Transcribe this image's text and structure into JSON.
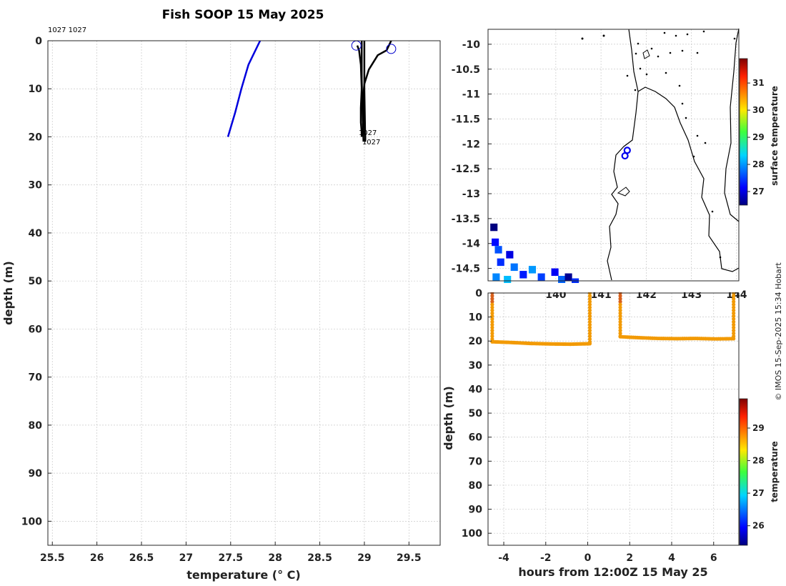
{
  "page": {
    "title": "Fish SOOP 15 May 2025",
    "credit": "© IMOS 15-Sep-2025 15:34 Hobart",
    "top_left_label": "1027 1027"
  },
  "colors": {
    "profile_blue": "#0000dd",
    "profile_black": "#000000",
    "series_orange": "#f29a05",
    "land_line": "#000000"
  },
  "chart_data": [
    {
      "type": "line",
      "name": "profile",
      "xlabel": "temperature (° C)",
      "ylabel": "depth (m)",
      "xlim": [
        25.45,
        29.85
      ],
      "ylim": [
        105,
        0
      ],
      "xticks": [
        25.5,
        26,
        26.5,
        27,
        27.5,
        28,
        28.5,
        29,
        29.5
      ],
      "xtick_labels": [
        "25.5",
        "26",
        "26.5",
        "27",
        "27.5",
        "28",
        "28.5",
        "29",
        "29.5"
      ],
      "yticks": [
        0,
        10,
        20,
        30,
        40,
        50,
        60,
        70,
        80,
        90,
        100
      ],
      "ytick_labels": [
        "0",
        "10",
        "20",
        "30",
        "40",
        "50",
        "60",
        "70",
        "80",
        "90",
        "100"
      ],
      "grid": true,
      "series": [
        {
          "name": "blue profile",
          "color": "#0000dd",
          "x": [
            27.47,
            27.55,
            27.62,
            27.7,
            27.83
          ],
          "y": [
            20,
            15,
            10,
            5,
            0
          ]
        },
        {
          "name": "profile 1027 a",
          "color": "#000000",
          "x": [
            28.92,
            28.94,
            28.96,
            28.97,
            28.96,
            28.96,
            28.97,
            28.97
          ],
          "y": [
            1,
            2,
            5,
            10,
            14,
            17,
            19,
            20
          ]
        },
        {
          "name": "profile 1027 b",
          "color": "#000000",
          "x": [
            29.3,
            29.25,
            29.15,
            29.05,
            29.0,
            28.99,
            28.99,
            29.0,
            29.01,
            29.01
          ],
          "y": [
            0,
            2,
            3,
            6,
            9,
            11,
            14,
            17,
            20,
            21
          ]
        },
        {
          "name": "profile 1027 c",
          "color": "#000000",
          "x": [
            28.97,
            28.97,
            28.98,
            28.99
          ],
          "y": [
            0,
            8,
            15,
            21
          ]
        },
        {
          "name": "profile 1027 d",
          "color": "#000000",
          "x": [
            29.0,
            29.0,
            29.01
          ],
          "y": [
            0,
            10,
            21
          ]
        }
      ],
      "markers": [
        {
          "name": "surface marker 1",
          "x": 28.91,
          "y": 1
        },
        {
          "name": "surface marker 2",
          "x": 29.3,
          "y": 1.7
        }
      ],
      "annotations": [
        {
          "text": "1027",
          "x": 28.96,
          "y": 19
        },
        {
          "text": "1027",
          "x": 29.0,
          "y": 21
        }
      ]
    },
    {
      "type": "heatmap",
      "name": "map",
      "colorbar_label": "surface temperature",
      "colorbar_range": [
        26.5,
        31.9
      ],
      "colorbar_ticks": [
        27,
        28,
        29,
        30,
        31
      ],
      "xlim": [
        138.5,
        144.05
      ],
      "ylim": [
        -14.75,
        -9.7
      ],
      "xticks": [
        140,
        141,
        142,
        143,
        144
      ],
      "xtick_labels": [
        "140",
        "141",
        "142",
        "143",
        "144"
      ],
      "yticks": [
        -10,
        -10.5,
        -11,
        -11.5,
        -12,
        -12.5,
        -13,
        -13.5,
        -14,
        -14.5
      ],
      "ytick_labels": [
        "-10",
        "-10.5",
        "-11",
        "-11.5",
        "-12",
        "-12.5",
        "-13",
        "-13.5",
        "-14",
        "-14.5"
      ],
      "grid": true,
      "vessel_positions": [
        {
          "lon": 141.58,
          "lat": -12.13
        },
        {
          "lon": 141.53,
          "lat": -12.24
        }
      ],
      "sst_cells": [
        {
          "lon": 138.55,
          "lat": -13.6,
          "t": 26.5
        },
        {
          "lon": 138.58,
          "lat": -13.9,
          "t": 27.2
        },
        {
          "lon": 138.65,
          "lat": -14.05,
          "t": 27.6
        },
        {
          "lon": 138.7,
          "lat": -14.3,
          "t": 27.4
        },
        {
          "lon": 138.9,
          "lat": -14.15,
          "t": 27.0
        },
        {
          "lon": 139.0,
          "lat": -14.4,
          "t": 27.8
        },
        {
          "lon": 139.2,
          "lat": -14.55,
          "t": 27.3
        },
        {
          "lon": 139.4,
          "lat": -14.45,
          "t": 28.0
        },
        {
          "lon": 139.6,
          "lat": -14.6,
          "t": 27.5
        },
        {
          "lon": 139.9,
          "lat": -14.5,
          "t": 27.1
        },
        {
          "lon": 140.05,
          "lat": -14.65,
          "t": 27.7
        },
        {
          "lon": 140.2,
          "lat": -14.6,
          "t": 26.6
        },
        {
          "lon": 140.35,
          "lat": -14.7,
          "t": 27.4
        },
        {
          "lon": 138.6,
          "lat": -14.6,
          "t": 27.9
        },
        {
          "lon": 138.85,
          "lat": -14.65,
          "t": 28.2
        }
      ]
    },
    {
      "type": "scatter",
      "name": "timeseries",
      "xlabel": "hours from 12:00Z 15 May 25",
      "ylabel": "depth (m)",
      "colorbar_label": "temperature",
      "colorbar_range": [
        25.4,
        29.9
      ],
      "colorbar_ticks": [
        26,
        27,
        28,
        29
      ],
      "xlim": [
        -4.75,
        7.2
      ],
      "ylim": [
        105,
        0
      ],
      "xticks": [
        -4,
        -2,
        0,
        2,
        4,
        6
      ],
      "xtick_labels": [
        "-4",
        "-2",
        "0",
        "2",
        "4",
        "6"
      ],
      "yticks": [
        0,
        10,
        20,
        30,
        40,
        50,
        60,
        70,
        80,
        90,
        100
      ],
      "ytick_labels": [
        "0",
        "10",
        "20",
        "30",
        "40",
        "50",
        "60",
        "70",
        "80",
        "90",
        "100"
      ],
      "grid": true,
      "segments": [
        {
          "name": "deployment 1",
          "x_start": -4.55,
          "x_end": 0.1,
          "surface_temp": 28.8,
          "bottom_depth": [
            20.3,
            20.6,
            21.0,
            21.2,
            21.3,
            21.1
          ]
        },
        {
          "name": "deployment 2",
          "x_start": 1.55,
          "x_end": 6.95,
          "surface_temp": 28.8,
          "bottom_depth": [
            18.2,
            18.6,
            18.9,
            19.0,
            18.9,
            19.1,
            19.0
          ]
        }
      ]
    }
  ]
}
